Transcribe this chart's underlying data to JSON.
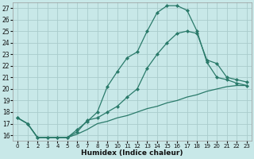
{
  "xlabel": "Humidex (Indice chaleur)",
  "background_color": "#c8e8e8",
  "grid_color": "#aacccc",
  "line_color": "#2a7a6a",
  "xlim": [
    -0.5,
    23.5
  ],
  "ylim": [
    15.5,
    27.5
  ],
  "yticks": [
    16,
    17,
    18,
    19,
    20,
    21,
    22,
    23,
    24,
    25,
    26,
    27
  ],
  "xticks": [
    0,
    1,
    2,
    3,
    4,
    5,
    6,
    7,
    8,
    9,
    10,
    11,
    12,
    13,
    14,
    15,
    16,
    17,
    18,
    19,
    20,
    21,
    22,
    23
  ],
  "line1_x": [
    0,
    1,
    2,
    3,
    4,
    5,
    6,
    7,
    8,
    9,
    10,
    11,
    12,
    13,
    14,
    15,
    16,
    17,
    18,
    19,
    20,
    21,
    22,
    23
  ],
  "line1_y": [
    17.5,
    17.0,
    15.8,
    15.8,
    15.8,
    15.8,
    16.5,
    17.2,
    18.0,
    20.2,
    21.5,
    22.7,
    23.2,
    25.0,
    26.6,
    27.2,
    27.2,
    26.8,
    25.0,
    22.3,
    21.0,
    20.8,
    20.5,
    20.3
  ],
  "line2_x": [
    0,
    1,
    2,
    3,
    4,
    5,
    6,
    7,
    8,
    9,
    10,
    11,
    12,
    13,
    14,
    15,
    16,
    17,
    18,
    19,
    20,
    21,
    22,
    23
  ],
  "line2_y": [
    17.5,
    17.0,
    15.8,
    15.8,
    15.8,
    15.8,
    16.3,
    17.3,
    17.5,
    18.0,
    18.5,
    19.3,
    20.0,
    21.8,
    23.0,
    24.0,
    24.8,
    25.0,
    24.8,
    22.5,
    22.2,
    21.0,
    20.8,
    20.6
  ],
  "line3_x": [
    0,
    1,
    2,
    3,
    4,
    5,
    6,
    7,
    8,
    9,
    10,
    11,
    12,
    13,
    14,
    15,
    16,
    17,
    18,
    19,
    20,
    21,
    22,
    23
  ],
  "line3_y": [
    17.5,
    17.0,
    15.8,
    15.8,
    15.8,
    15.8,
    16.1,
    16.5,
    17.0,
    17.2,
    17.5,
    17.7,
    18.0,
    18.3,
    18.5,
    18.8,
    19.0,
    19.3,
    19.5,
    19.8,
    20.0,
    20.2,
    20.3,
    20.3
  ]
}
